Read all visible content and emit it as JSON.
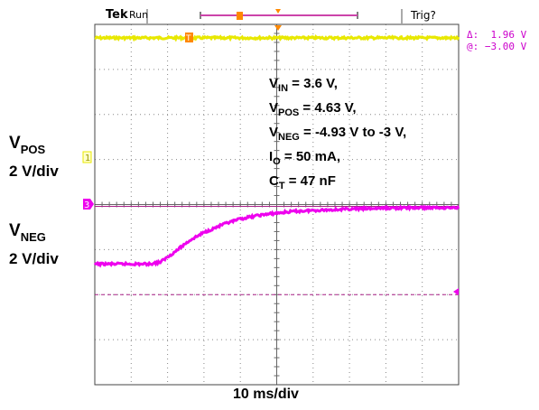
{
  "header": {
    "brand": "Tek",
    "status": "Run",
    "trigger_status": "Trig?"
  },
  "measurement": {
    "delta_label": "Δ:",
    "delta_value": "1.96 V",
    "at_label": "@:",
    "at_value": "−3.00 V"
  },
  "left_labels": {
    "vpos_main": "V",
    "vpos_sub": "POS",
    "vpos_scale": "2 V/div",
    "vneg_main": "V",
    "vneg_sub": "NEG",
    "vneg_scale": "2 V/div"
  },
  "annotation": {
    "vin_main": "V",
    "vin_sub": "IN",
    "vin_rest": " = 3.6 V,",
    "vpos_main": "V",
    "vpos_sub": "POS",
    "vpos_rest": " = 4.63 V,",
    "vneg_main": "V",
    "vneg_sub": "NEG",
    "vneg_rest": " = -4.93 V to -3 V,",
    "io_main": "I",
    "io_sub": "O",
    "io_rest": " = 50 mA,",
    "ct_main": "C",
    "ct_sub": "T",
    "ct_rest": " = 47 nF"
  },
  "channel_markers": {
    "ch1": "1",
    "ch3": "3",
    "trigger": "T"
  },
  "colors": {
    "ch1": "#e8e800",
    "ch3": "#ee00ee",
    "cursor": "#aa2288",
    "grid": "#888888",
    "trigger": "#ff8800"
  },
  "chart_data": {
    "type": "line",
    "xlabel": "10 ms/div",
    "x_divisions": 10,
    "y_divisions": 8,
    "xlim": [
      0,
      10
    ],
    "ylim": [
      0,
      8
    ],
    "series": [
      {
        "channel": "1",
        "x": [
          0,
          10
        ],
        "y": [
          7.7,
          7.7
        ]
      },
      {
        "channel": "3",
        "x": [
          0,
          1.5,
          1.8,
          2.2,
          2.6,
          3.0,
          3.5,
          4.0,
          4.5,
          5.0,
          5.5,
          6.0,
          7.0,
          8.0,
          9.0,
          10.0
        ],
        "y": [
          2.68,
          2.68,
          2.72,
          2.95,
          3.2,
          3.38,
          3.55,
          3.68,
          3.76,
          3.81,
          3.85,
          3.87,
          3.9,
          3.92,
          3.93,
          3.93
        ]
      }
    ],
    "cursors": [
      3.96,
      2.0
    ]
  }
}
